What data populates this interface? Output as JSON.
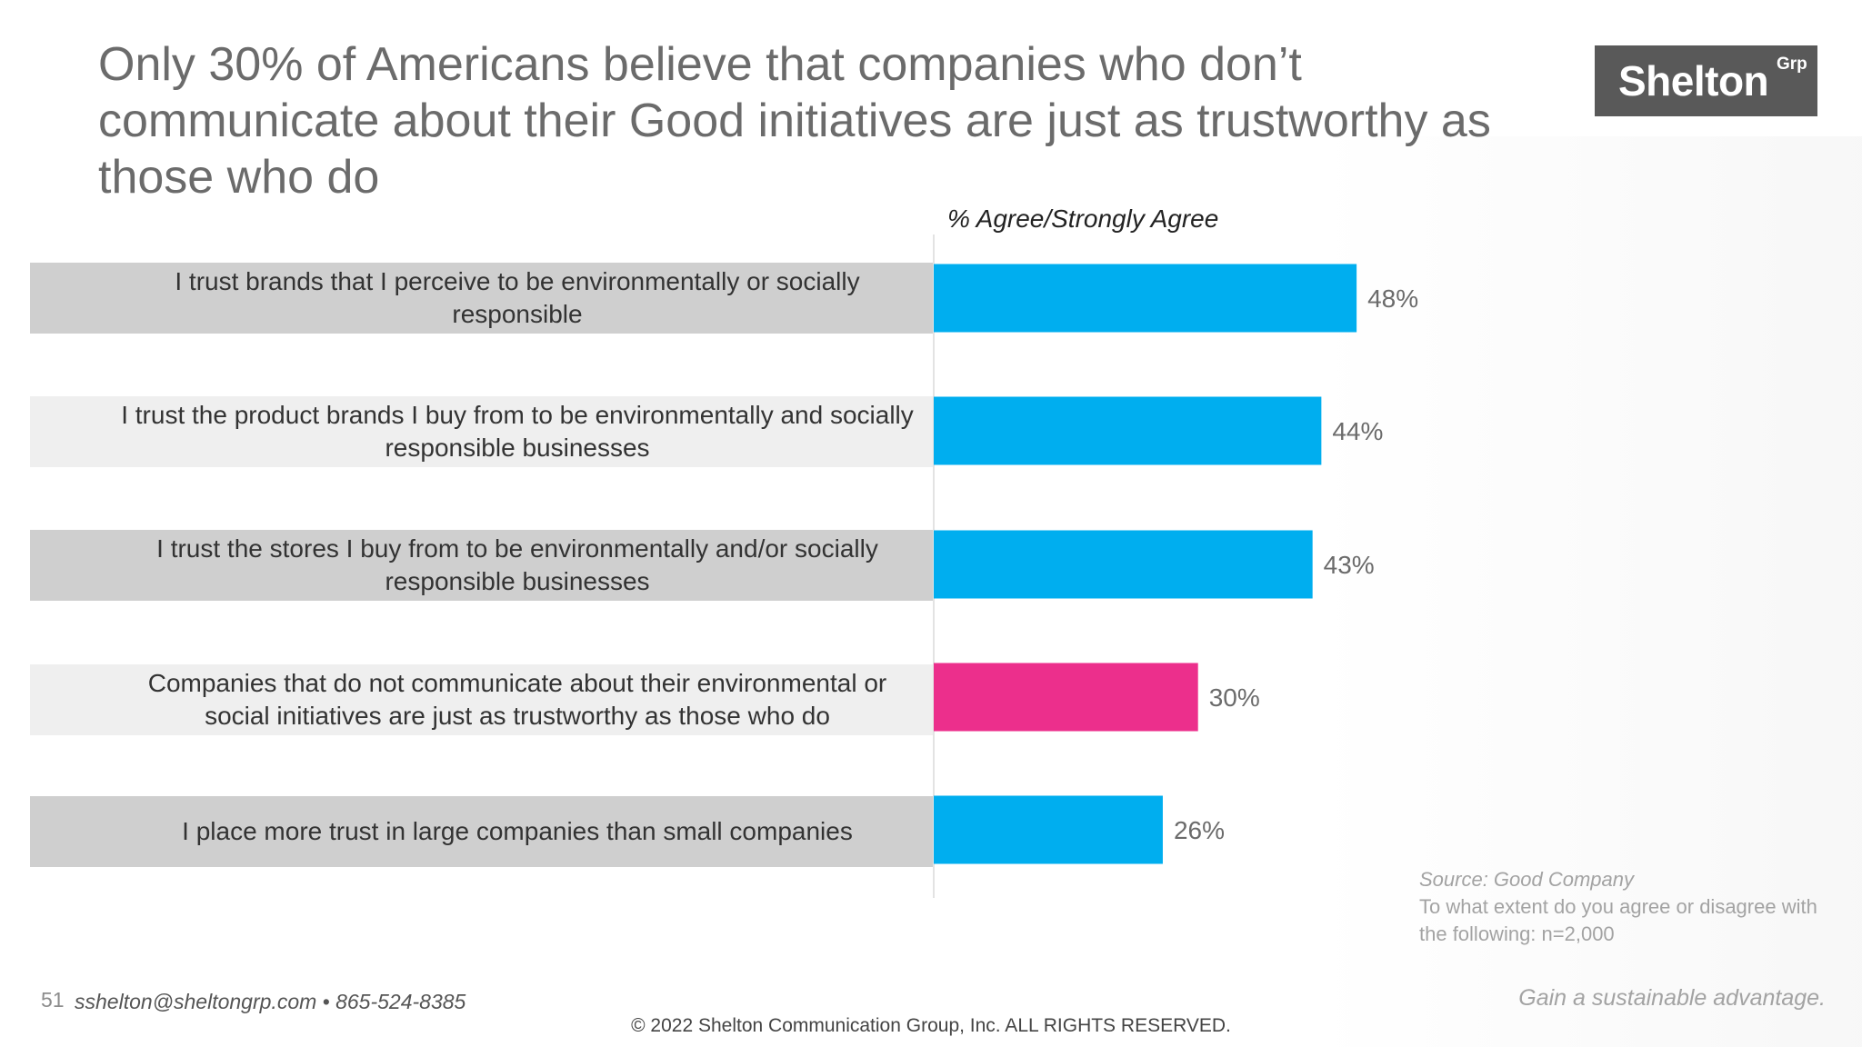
{
  "slide": {
    "title": "Only 30% of Americans believe that companies who don’t communicate about their Good initiatives are just as trustworthy as those who do",
    "page_number": "51",
    "contact": "sshelton@sheltongrp.com • 865-524-8385",
    "tagline": "Gain a sustainable advantage.",
    "copyright": "© 2022 Shelton Communication Group, Inc.  ALL RIGHTS RESERVED."
  },
  "logo": {
    "text": "Shelton",
    "superscript": "Grp"
  },
  "source": {
    "title": "Source: Good Company",
    "note": "To what extent do you agree or disagree with the following: n=2,000"
  },
  "colors": {
    "bar_default": "#00aeef",
    "bar_highlight": "#ec2f8c",
    "label_band_dark": "#cfcfcf",
    "label_band_light": "#efefef"
  },
  "chart_data": {
    "type": "bar",
    "orientation": "horizontal",
    "value_axis_label": "% Agree/Strongly Agree",
    "categories": [
      "I trust brands that I perceive to be environmentally or socially responsible",
      "I trust the product brands I buy from to be environmentally and socially responsible businesses",
      "I trust the stores I buy from to be environmentally and/or socially responsible businesses",
      "Companies that do not communicate about their environmental or social initiatives are just as trustworthy as those who do",
      "I place more trust in large companies than small companies"
    ],
    "values": [
      48,
      44,
      43,
      30,
      26
    ],
    "data_labels": [
      "48%",
      "44%",
      "43%",
      "30%",
      "26%"
    ],
    "highlight_index": 3,
    "xlim": [
      0,
      100
    ],
    "grid": false,
    "legend": "none"
  }
}
